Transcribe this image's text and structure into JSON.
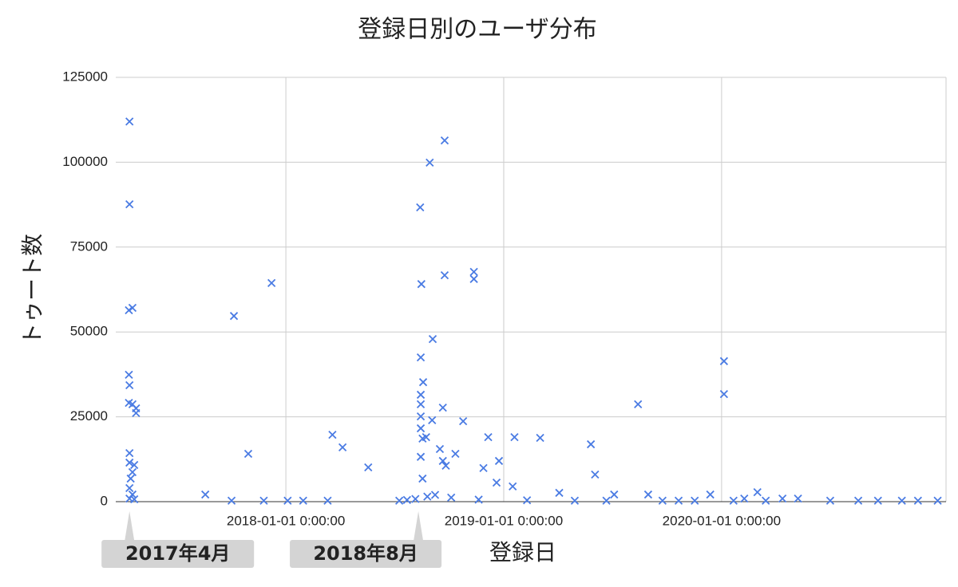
{
  "chart_data": {
    "type": "scatter",
    "title": "登録日別のユーザ分布",
    "x_label": "登録日",
    "y_label": "トゥート数",
    "color": "#4a7be3",
    "grid": true,
    "xlim": [
      "2017-03-22",
      "2021-01-11"
    ],
    "xticks": [
      {
        "value": "2018-01-01",
        "label": "2018-01-01 0:00:00"
      },
      {
        "value": "2019-01-01",
        "label": "2019-01-01 0:00:00"
      },
      {
        "value": "2020-01-01",
        "label": "2020-01-01 0:00:00"
      }
    ],
    "ylim": [
      0,
      125000
    ],
    "yticks": [
      0,
      25000,
      50000,
      75000,
      100000,
      125000
    ],
    "annotations": [
      {
        "text": "2017年4月",
        "x": "2017-04-14"
      },
      {
        "text": "2018年8月",
        "x": "2018-08-11"
      }
    ],
    "series": [
      {
        "name": "トゥート数",
        "x": [
          "2017-04-14",
          "2017-04-14",
          "2017-04-19",
          "2017-04-13",
          "2017-04-13",
          "2017-04-14",
          "2017-04-13",
          "2017-04-19",
          "2017-04-25",
          "2017-04-25",
          "2017-04-14",
          "2017-04-14",
          "2017-04-22",
          "2017-04-19",
          "2017-04-16",
          "2017-04-14",
          "2017-04-19",
          "2017-04-14",
          "2017-04-22",
          "2017-08-19",
          "2017-10-06",
          "2017-10-30",
          "2017-12-08",
          "2018-03-20",
          "2018-04-06",
          "2018-05-19",
          "2018-08-14",
          "2018-08-16",
          "2018-08-15",
          "2018-08-15",
          "2018-08-15",
          "2018-08-15",
          "2018-08-15",
          "2018-08-18",
          "2018-08-15",
          "2018-08-18",
          "2018-08-30",
          "2018-09-24",
          "2018-09-04",
          "2018-08-19",
          "2018-09-24",
          "2018-09-21",
          "2018-09-03",
          "2018-08-24",
          "2018-09-16",
          "2018-09-21",
          "2018-09-26",
          "2018-10-12",
          "2018-10-25",
          "2018-11-12",
          "2018-11-12",
          "2018-12-06",
          "2018-11-28",
          "2018-12-24",
          "2018-12-20",
          "2019-01-19",
          "2019-01-16",
          "2019-03-03",
          "2019-04-04",
          "2019-05-27",
          "2019-06-03",
          "2019-07-05",
          "2019-08-14",
          "2019-08-31",
          "2019-12-13",
          "2020-01-05",
          "2020-01-05",
          "2020-03-01",
          "2020-02-08",
          "2020-04-12",
          "2020-05-08",
          "2017-10-02",
          "2017-11-25",
          "2018-01-04",
          "2018-01-30",
          "2018-03-12",
          "2018-07-10",
          "2018-07-23",
          "2018-08-06",
          "2018-08-26",
          "2018-09-08",
          "2018-10-05",
          "2018-11-20",
          "2019-02-09",
          "2019-04-30",
          "2019-06-22",
          "2019-09-24",
          "2019-10-21",
          "2019-11-17",
          "2020-01-21",
          "2020-03-15",
          "2020-07-01",
          "2020-08-17",
          "2020-09-19",
          "2020-10-29",
          "2020-11-25",
          "2020-12-28"
        ],
        "values": [
          112000,
          87600,
          57100,
          56400,
          37400,
          34300,
          29100,
          28700,
          27500,
          26100,
          14300,
          11500,
          10800,
          8700,
          6800,
          4000,
          2100,
          900,
          700,
          2100,
          54700,
          14100,
          64400,
          19700,
          16000,
          10100,
          86700,
          64100,
          42500,
          31500,
          28700,
          25100,
          21600,
          18600,
          13200,
          6800,
          99900,
          106400,
          47900,
          35200,
          66700,
          27700,
          24000,
          19000,
          15500,
          12000,
          10600,
          14100,
          23700,
          67700,
          65600,
          19000,
          9900,
          12000,
          5600,
          19000,
          4500,
          18800,
          2600,
          16900,
          8000,
          2100,
          28700,
          2100,
          2100,
          41400,
          31700,
          2800,
          900,
          900,
          900,
          300,
          300,
          300,
          300,
          300,
          300,
          500,
          800,
          1500,
          2000,
          1200,
          600,
          400,
          300,
          300,
          300,
          300,
          300,
          300,
          300,
          300,
          300,
          300,
          300,
          300,
          300
        ]
      }
    ]
  }
}
